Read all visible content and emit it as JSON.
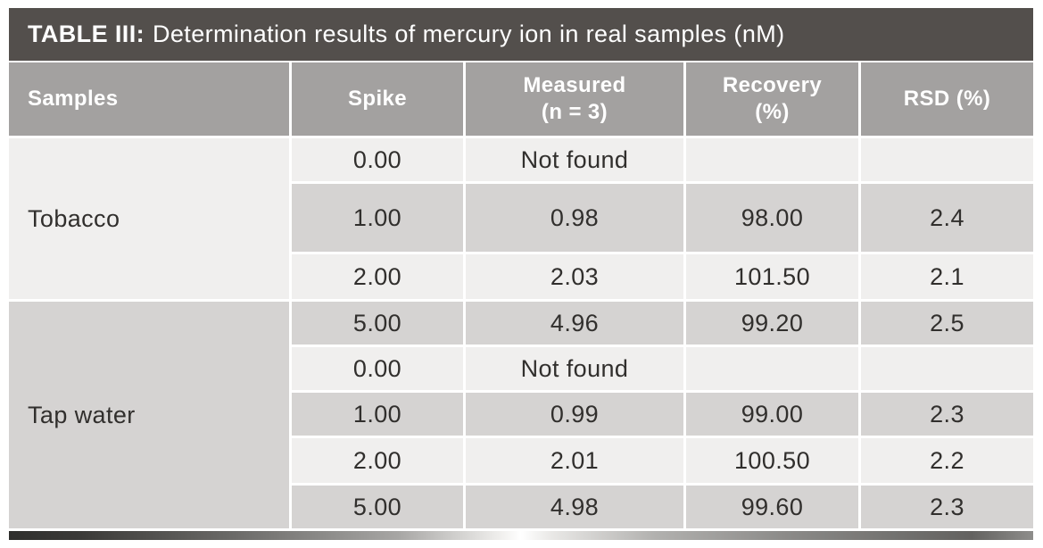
{
  "title": {
    "label": "TABLE III:",
    "text": "Determination results of mercury ion in real samples (nM)"
  },
  "columns": {
    "samples": {
      "label": "Samples"
    },
    "spike": {
      "label": "Spike"
    },
    "measured": {
      "label": "Measured",
      "label2": "(n = 3)"
    },
    "recovery": {
      "label": "Recovery",
      "label2": "(%)"
    },
    "rsd": {
      "label": "RSD (%)"
    }
  },
  "groups": [
    {
      "sample": "Tobacco",
      "rows": [
        {
          "spike": "0.00",
          "measured": "Not found",
          "recovery": "",
          "rsd": ""
        },
        {
          "spike": "1.00",
          "measured": "0.98",
          "recovery": "98.00",
          "rsd": "2.4"
        },
        {
          "spike": "2.00",
          "measured": "2.03",
          "recovery": "101.50",
          "rsd": "2.1"
        }
      ]
    },
    {
      "sample": "Tap water",
      "rows": [
        {
          "spike": "5.00",
          "measured": "4.96",
          "recovery": "99.20",
          "rsd": "2.5"
        },
        {
          "spike": "0.00",
          "measured": "Not found",
          "recovery": "",
          "rsd": ""
        },
        {
          "spike": "1.00",
          "measured": "0.99",
          "recovery": "99.00",
          "rsd": "2.3"
        },
        {
          "spike": "2.00",
          "measured": "2.01",
          "recovery": "100.50",
          "rsd": "2.2"
        },
        {
          "spike": "5.00",
          "measured": "4.98",
          "recovery": "99.60",
          "rsd": "2.3"
        }
      ]
    }
  ],
  "colors": {
    "title_bar": "#534F4C",
    "header_bg": "#A3A1A0",
    "row_light": "#F0EFEE",
    "row_dark": "#D5D3D2",
    "text": "#312F2D",
    "header_text": "#FFFFFF"
  }
}
